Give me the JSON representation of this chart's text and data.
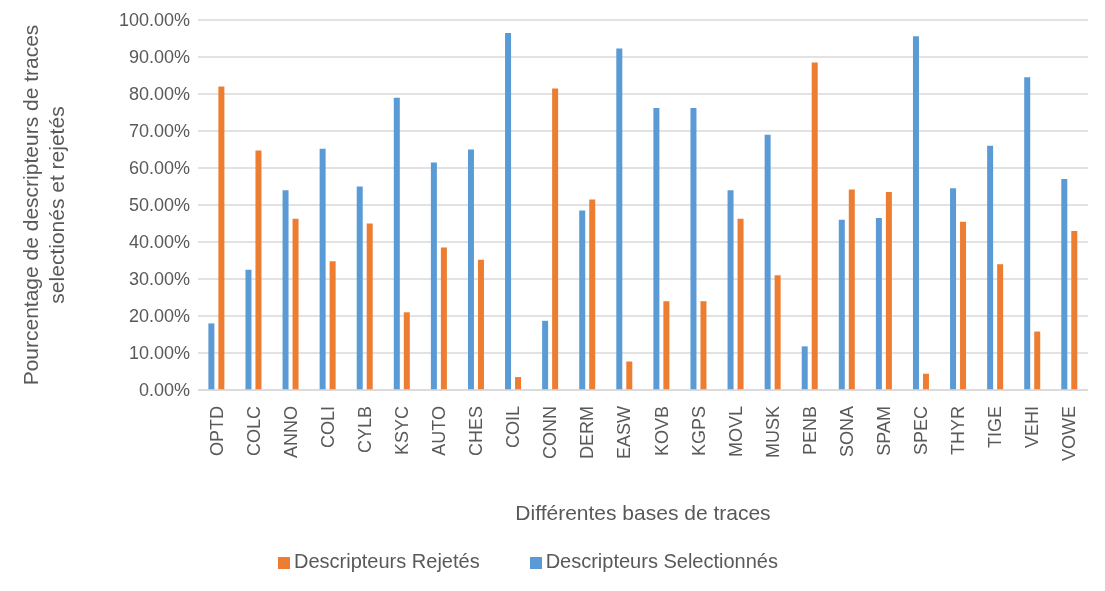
{
  "chart_data": {
    "type": "bar",
    "xlabel": "Différentes bases de traces",
    "ylabel": "Pourcentage de descripteurs de traces selectionés et rejetés",
    "categories": [
      "OPTD",
      "COLC",
      "ANNO",
      "COLI",
      "CYLB",
      "KSYC",
      "AUTO",
      "CHES",
      "COIL",
      "CONN",
      "DERM",
      "EASW",
      "KOVB",
      "KGPS",
      "MOVL",
      "MUSK",
      "PENB",
      "SONA",
      "SPAM",
      "SPEC",
      "THYR",
      "TIGE",
      "VEHI",
      "VOWE"
    ],
    "series": [
      {
        "name": "Descripteurs Selectionnés",
        "color": "#5b9bd5",
        "values": [
          18,
          32.5,
          54,
          65.2,
          55,
          79,
          61.5,
          65,
          96.5,
          18.7,
          48.5,
          92.3,
          76.2,
          76.2,
          54,
          69,
          11.8,
          46,
          46.5,
          95.6,
          54.5,
          66,
          84.5,
          57
        ]
      },
      {
        "name": "Descripteurs Rejetés",
        "color": "#ed7d31",
        "values": [
          82,
          64.7,
          46.3,
          34.8,
          45,
          21,
          38.5,
          35.2,
          3.5,
          81.5,
          51.5,
          7.7,
          24,
          24,
          46.3,
          31,
          88.5,
          54.2,
          53.5,
          4.4,
          45.5,
          34,
          15.8,
          43
        ]
      }
    ],
    "ylim": [
      0,
      100
    ],
    "yticks": [
      {
        "value": 0,
        "label": "0.00%"
      },
      {
        "value": 10,
        "label": "10.00%"
      },
      {
        "value": 20,
        "label": "20.00%"
      },
      {
        "value": 30,
        "label": "30.00%"
      },
      {
        "value": 40,
        "label": "40.00%"
      },
      {
        "value": 50,
        "label": "50.00%"
      },
      {
        "value": 60,
        "label": "60.00%"
      },
      {
        "value": 70,
        "label": "70.00%"
      },
      {
        "value": 80,
        "label": "80.00%"
      },
      {
        "value": 90,
        "label": "90.00%"
      },
      {
        "value": 100,
        "label": "100.00%"
      }
    ],
    "grid": "y",
    "legend": "bottom"
  }
}
